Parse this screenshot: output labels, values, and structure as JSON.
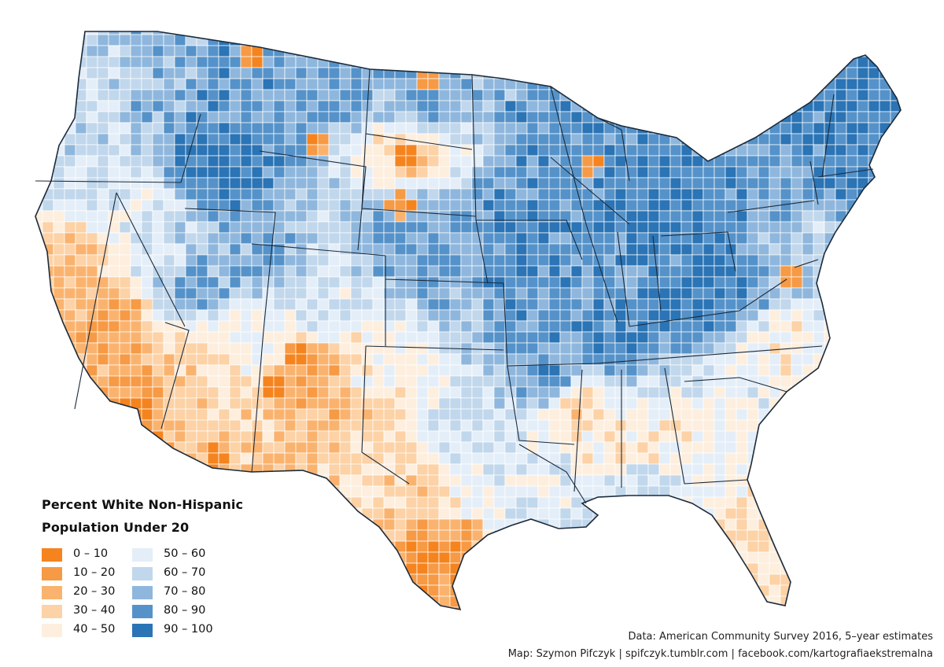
{
  "legend": {
    "title_line1": "Percent White Non-Hispanic",
    "title_line2": "Population Under 20",
    "items": [
      {
        "label": "0 – 10",
        "color": "#f5841f"
      },
      {
        "label": "10 – 20",
        "color": "#f79a45"
      },
      {
        "label": "20 – 30",
        "color": "#fab36f"
      },
      {
        "label": "30 – 40",
        "color": "#fcd2a6"
      },
      {
        "label": "40 – 50",
        "color": "#fdeede"
      },
      {
        "label": "50 – 60",
        "color": "#e4eef8"
      },
      {
        "label": "60 – 70",
        "color": "#c1d7ec"
      },
      {
        "label": "70 – 80",
        "color": "#8fb7dd"
      },
      {
        "label": "80 – 90",
        "color": "#5592c9"
      },
      {
        "label": "90 – 100",
        "color": "#2b74b5"
      }
    ]
  },
  "credits": {
    "data_source": "Data: American Community Survey 2016, 5–year estimates",
    "map_author": "Map: Szymon Pifczyk | spifczyk.tumblr.com | facebook.com/kartografiaekstremalna"
  },
  "colors": {
    "background": "#ffffff",
    "state_border": "#1b2a3a",
    "county_border": "#ffffff"
  }
}
